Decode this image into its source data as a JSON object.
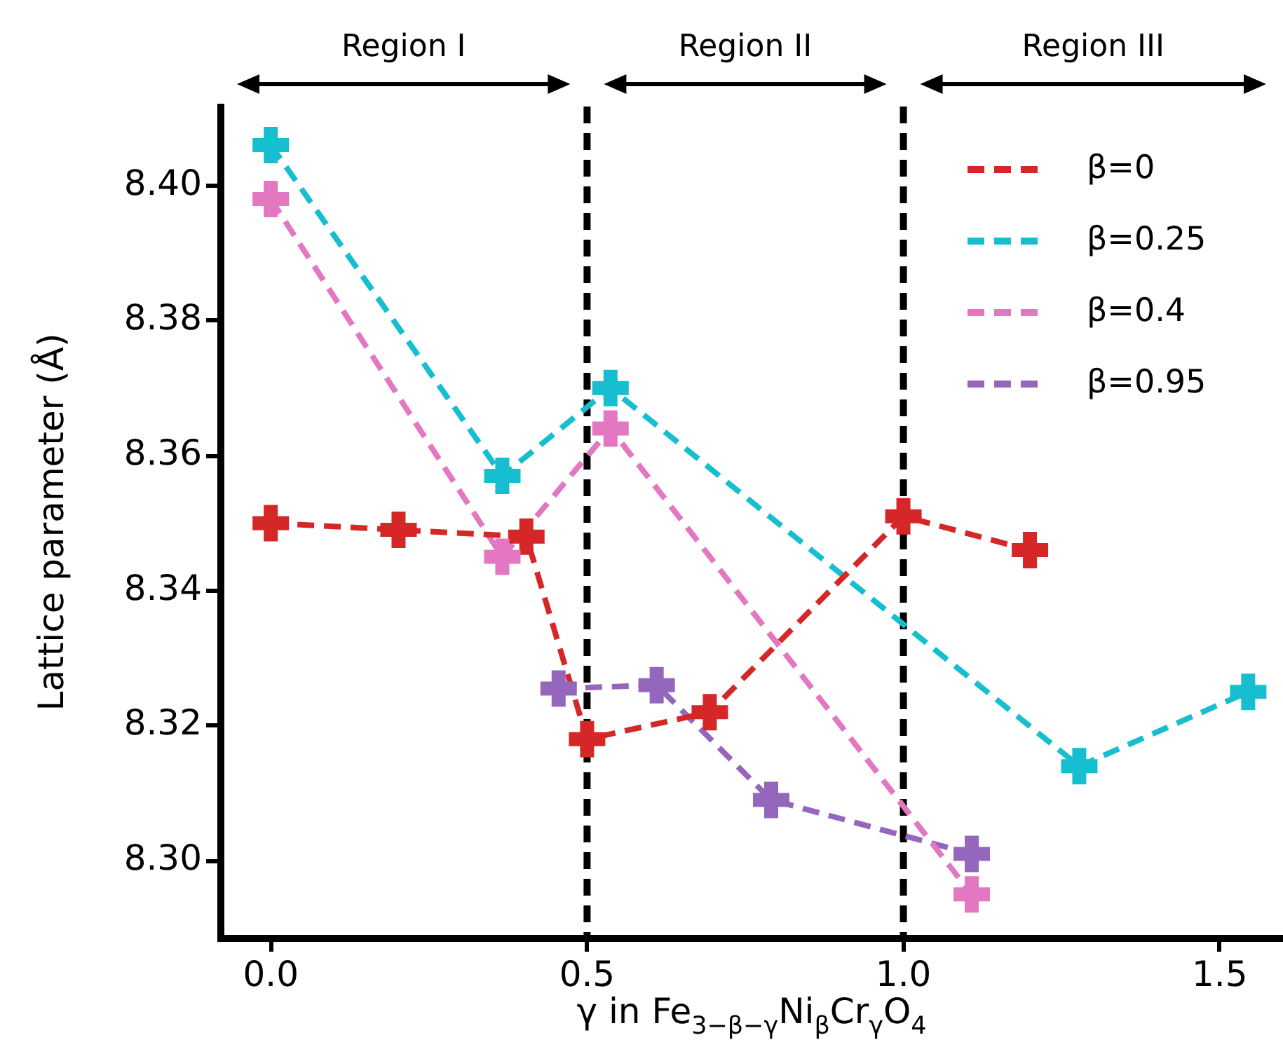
{
  "chart_data": {
    "type": "line",
    "xlabel": "γ in Fe$_{3−β−γ}$Ni$_{β}$Cr$_{γ}$O$_{4}$",
    "ylabel": "Lattice parameter (Å)",
    "annotations": [
      "Region I",
      "Region II",
      "Region III"
    ],
    "xlim": [
      -0.08,
      1.6
    ],
    "xticks": [
      {
        "value": 0,
        "label": "0.0"
      },
      0.5,
      {
        "value": 1,
        "label": "1.0"
      },
      1.5
    ],
    "ylim": [
      8.2886,
      8.4117
    ],
    "yticks": [
      {
        "value": 8.3,
        "label": "8.30"
      },
      8.32,
      8.34,
      8.36,
      8.38,
      {
        "value": 8.4,
        "label": "8.40"
      }
    ],
    "marker": "cross",
    "line_style": "dashed",
    "grid": false,
    "legend": "top right",
    "ref_lines": [
      {
        "axis": "x",
        "value": 0.5,
        "color": "#000000",
        "line_style": "dashed"
      },
      {
        "axis": "x",
        "value": 1.0,
        "color": "#000000",
        "line_style": "dashed"
      }
    ],
    "series": [
      {
        "name": "β=0",
        "color": "#d62728",
        "x": [
          0,
          0.202,
          0.404,
          0.5,
          0.694,
          1.0,
          1.2
        ],
        "values": [
          8.35,
          8.349,
          8.348,
          8.318,
          8.322,
          8.351,
          8.346
        ]
      },
      {
        "name": "β=0.25",
        "color": "#17becf",
        "x": [
          0,
          0.366,
          0.537,
          1.278,
          1.545
        ],
        "values": [
          8.406,
          8.357,
          8.37,
          8.314,
          8.325
        ]
      },
      {
        "name": "β=0.4",
        "color": "#e377c2",
        "x": [
          0,
          0.366,
          0.537,
          1.108
        ],
        "values": [
          8.398,
          8.345,
          8.364,
          8.295
        ]
      },
      {
        "name": "β=0.95",
        "color": "#9467bd",
        "x": [
          0.455,
          0.61,
          0.791,
          1.108
        ],
        "values": [
          8.3255,
          8.326,
          8.309,
          8.301
        ]
      }
    ]
  }
}
